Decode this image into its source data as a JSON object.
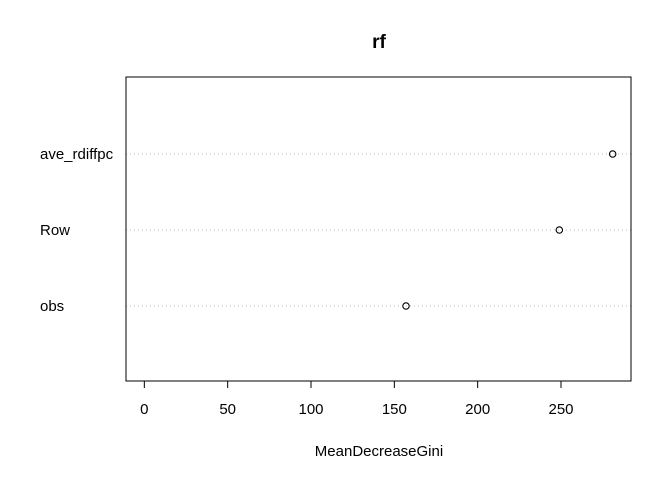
{
  "chart_data": {
    "type": "scatter",
    "title": "rf",
    "xlabel": "MeanDecreaseGini",
    "ylabel": "",
    "categories": [
      "ave_rdiffpc",
      "Row",
      "obs"
    ],
    "values": [
      281,
      249,
      157
    ],
    "xlim": [
      -11,
      292
    ],
    "xticks": [
      0,
      50,
      100,
      150,
      200,
      250
    ],
    "grid": "dotted horizontal lines per category",
    "legend": "none"
  },
  "colors": {
    "axis": "#000000",
    "grid": "#bebebe",
    "point": "#000000"
  }
}
